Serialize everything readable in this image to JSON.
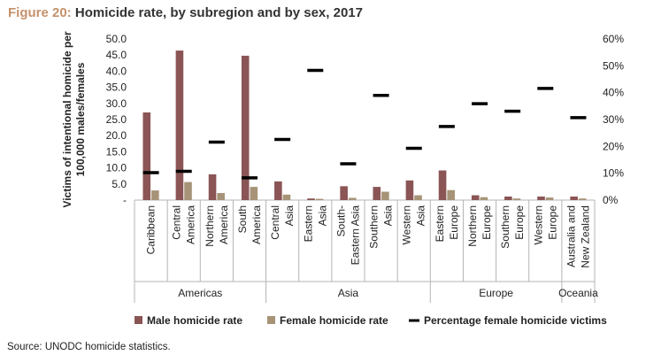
{
  "title": {
    "figure_label": "Figure 20:",
    "text": "Homicide rate, by subregion and by sex, 2017"
  },
  "source": "Source: UNODC homicide statistics.",
  "colors": {
    "male": "#8b5555",
    "female": "#a79478",
    "pct": "#000000",
    "title_label": "#c4916b",
    "grid": "#b4b4b4"
  },
  "chart_data": {
    "type": "bar",
    "title": "Homicide rate, by subregion and by sex, 2017",
    "ylabel": "Victims of intentional homicide per 100,000 males/females",
    "ylim": [
      0,
      50
    ],
    "y_ticks": [
      "-",
      "5.0",
      "10.0",
      "15.0",
      "20.0",
      "25.0",
      "30.0",
      "35.0",
      "40.0",
      "45.0",
      "50.0"
    ],
    "y2lim": [
      0,
      60
    ],
    "y2_ticks": [
      "0%",
      "10%",
      "20%",
      "30%",
      "40%",
      "50%",
      "60%"
    ],
    "categories": [
      [
        "Caribbean"
      ],
      [
        "Central",
        "America"
      ],
      [
        "Northern",
        "America"
      ],
      [
        "South",
        "America"
      ],
      [
        "Central",
        "Asia"
      ],
      [
        "Eastern",
        "Asia"
      ],
      [
        "South-",
        "Eastern Asia"
      ],
      [
        "Southern",
        "Asia"
      ],
      [
        "Western",
        "Asia"
      ],
      [
        "Eastern",
        "Europe"
      ],
      [
        "Northern",
        "Europe"
      ],
      [
        "Southern",
        "Europe"
      ],
      [
        "Western",
        "Europe"
      ],
      [
        "Australia and",
        "New Zealand"
      ]
    ],
    "groups": [
      {
        "name": "Americas",
        "start": 0,
        "end": 3
      },
      {
        "name": "Asia",
        "start": 4,
        "end": 8
      },
      {
        "name": "Europe",
        "start": 9,
        "end": 12
      },
      {
        "name": "Oceania",
        "start": 13,
        "end": 13
      }
    ],
    "series": [
      {
        "name": "Male homicide rate",
        "axis": "left",
        "values": [
          27.2,
          46.4,
          8.0,
          44.8,
          5.8,
          0.5,
          4.3,
          4.1,
          6.1,
          9.2,
          1.5,
          1.1,
          1.1,
          1.1
        ]
      },
      {
        "name": "Female homicide rate",
        "axis": "left",
        "values": [
          3.0,
          5.6,
          2.2,
          4.1,
          1.7,
          0.4,
          0.7,
          2.6,
          1.5,
          3.1,
          0.9,
          0.5,
          0.8,
          0.5
        ]
      },
      {
        "name": "Percentage female homicide victims",
        "axis": "right",
        "values": [
          10.2,
          10.7,
          21.6,
          8.3,
          22.6,
          48.3,
          13.5,
          39.0,
          19.3,
          27.4,
          35.9,
          33.1,
          41.6,
          30.7
        ]
      }
    ],
    "legend": [
      "Male homicide rate",
      "Female homicide rate",
      "Percentage female homicide victims"
    ],
    "legend_position": "bottom"
  }
}
